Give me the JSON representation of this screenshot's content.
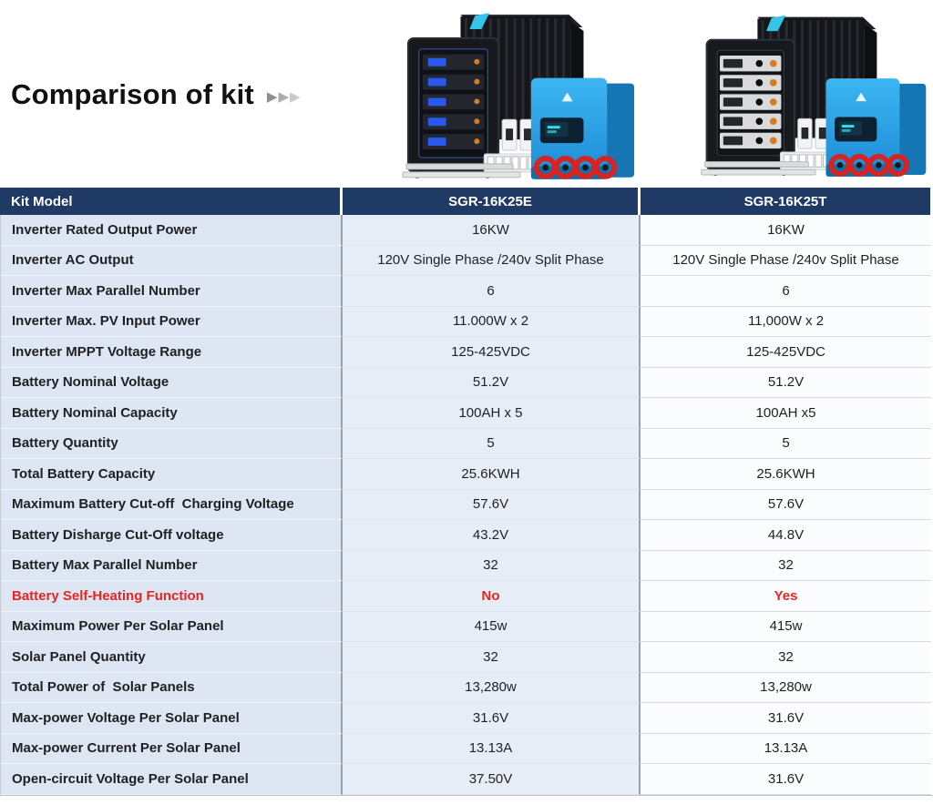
{
  "header": {
    "title": "Comparison of kit",
    "arrows": [
      "▶",
      "▶",
      "▶"
    ]
  },
  "products": [
    {
      "name": "SGR-16K25E kit photo"
    },
    {
      "name": "SGR-16K25T kit photo"
    }
  ],
  "table": {
    "columns": [
      "Kit Model",
      "SGR-16K25E",
      "SGR-16K25T"
    ],
    "rows": [
      {
        "label": "Inverter Rated Output Power",
        "v1": "16KW",
        "v2": "16KW"
      },
      {
        "label": "Inverter AC Output",
        "v1": "120V Single Phase /240v Split Phase",
        "v2": "120V Single Phase /240v Split Phase"
      },
      {
        "label": "Inverter Max Parallel Number",
        "v1": "6",
        "v2": "6"
      },
      {
        "label": "Inverter Max. PV Input Power",
        "v1": "11.000W x 2",
        "v2": "11,000W x 2"
      },
      {
        "label": "Inverter MPPT Voltage Range",
        "v1": "125-425VDC",
        "v2": "125-425VDC"
      },
      {
        "label": "Battery Nominal Voltage",
        "v1": "51.2V",
        "v2": "51.2V"
      },
      {
        "label": "Battery Nominal Capacity",
        "v1": "100AH x 5",
        "v2": "100AH x5"
      },
      {
        "label": "Battery Quantity",
        "v1": "5",
        "v2": "5"
      },
      {
        "label": "Total Battery Capacity",
        "v1": "25.6KWH",
        "v2": "25.6KWH"
      },
      {
        "label": "Maximum Battery Cut-off  Charging Voltage",
        "v1": "57.6V",
        "v2": "57.6V"
      },
      {
        "label": "Battery Disharge Cut-Off voltage",
        "v1": "43.2V",
        "v2": "44.8V"
      },
      {
        "label": "Battery Max Parallel Number",
        "v1": "32",
        "v2": "32"
      },
      {
        "label": "Battery Self-Heating Function",
        "v1": "No",
        "v2": "Yes",
        "highlight": true
      },
      {
        "label": "Maximum Power Per Solar Panel",
        "v1": "415w",
        "v2": "415w"
      },
      {
        "label": "Solar Panel Quantity",
        "v1": "32",
        "v2": "32"
      },
      {
        "label": "Total Power of  Solar Panels",
        "v1": "13,280w",
        "v2": "13,280w"
      },
      {
        "label": "Max-power Voltage Per Solar Panel",
        "v1": "31.6V",
        "v2": "31.6V"
      },
      {
        "label": "Max-power Current Per Solar Panel",
        "v1": "13.13A",
        "v2": "13.13A"
      },
      {
        "label": "Open-circuit Voltage Per Solar Panel",
        "v1": "37.50V",
        "v2": "31.6V"
      }
    ]
  },
  "colors": {
    "header_bg": "#1f3a64",
    "header_text": "#ffffff",
    "col_label_bg": "#dde6f2",
    "col_value1_bg": "#e7edf6",
    "col_value2_bg": "#fbfcfe",
    "divider": "#97a0ab",
    "text": "#1f2023",
    "highlight_red": "#ea2420",
    "title_text": "#111111",
    "inverter_blue": "#2ea6e9",
    "cable_red": "#d62422"
  }
}
